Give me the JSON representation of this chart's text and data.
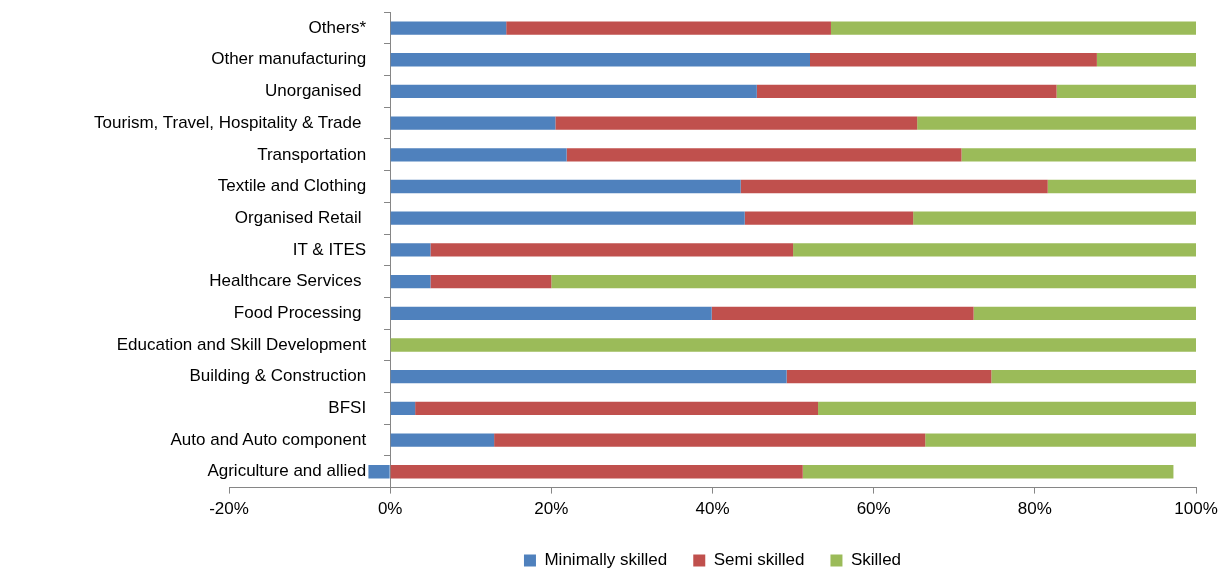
{
  "chart_data": {
    "type": "bar",
    "orientation": "horizontal",
    "stacked": true,
    "categories": [
      "Others*",
      "Other manufacturing",
      "Unorganised ",
      "Tourism, Travel, Hospitality & Trade ",
      "Transportation",
      "Textile and Clothing",
      "Organised Retail ",
      "IT & ITES",
      "Healthcare Services ",
      "Food Processing ",
      "Education and Skill Development",
      "Building & Construction",
      "BFSI",
      "Auto and Auto component",
      "Agriculture and allied"
    ],
    "series": [
      {
        "name": "Minimally skilled",
        "color": "#4f81bd",
        "values": [
          14.4,
          52.1,
          45.5,
          20.5,
          21.9,
          43.5,
          44.0,
          5.0,
          5.0,
          39.9,
          0,
          49.2,
          3.1,
          12.9,
          -2.7
        ]
      },
      {
        "name": "Semi skilled",
        "color": "#c0504d",
        "values": [
          40.3,
          35.6,
          37.2,
          44.9,
          49.0,
          38.1,
          20.9,
          45.0,
          15.0,
          32.5,
          0,
          25.4,
          50.0,
          53.5,
          51.2
        ]
      },
      {
        "name": "Skilled",
        "color": "#9bbb59",
        "values": [
          45.3,
          12.3,
          17.3,
          34.6,
          29.1,
          18.4,
          35.1,
          50.0,
          80.0,
          27.6,
          100,
          25.4,
          46.9,
          33.6,
          46.0
        ]
      }
    ],
    "xlim": [
      -20,
      100
    ],
    "xticks": [
      {
        "value": -20,
        "label": "-20%"
      },
      {
        "value": 0,
        "label": "0%"
      },
      {
        "value": 20,
        "label": "20%"
      },
      {
        "value": 40,
        "label": "40%"
      },
      {
        "value": 60,
        "label": "60%"
      },
      {
        "value": 80,
        "label": "80%"
      },
      {
        "value": 100,
        "label": "100%"
      }
    ],
    "legend": "bottom"
  }
}
